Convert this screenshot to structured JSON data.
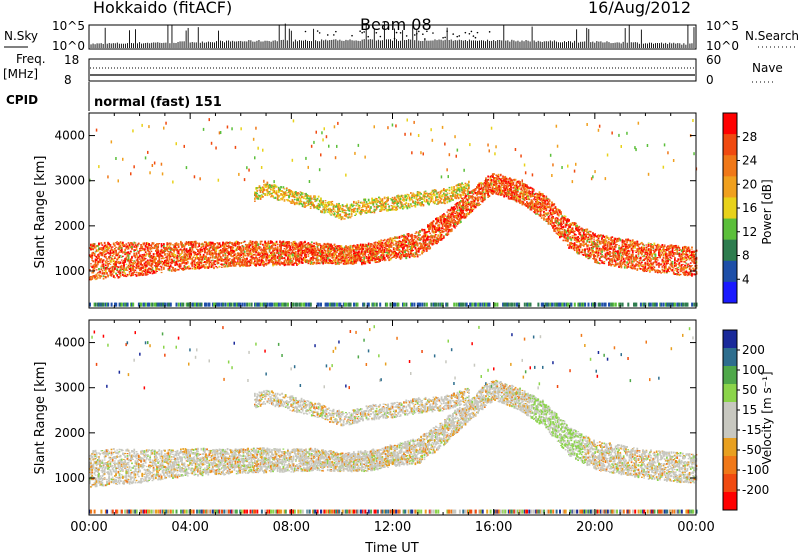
{
  "header": {
    "station": "Hokkaido (fitACF)",
    "beam": "Beam 08",
    "date": "16/Aug/2012"
  },
  "summary": {
    "nsky_label": "N.Sky",
    "nsky_ticks": [
      "10^5",
      "10^0"
    ],
    "nsearch_label": "N.Search",
    "nsearch_ticks": [
      "10^5",
      "10^0"
    ],
    "freq_label_1": "Freq.",
    "freq_label_2": "[MHz]",
    "freq_ticks": [
      "18",
      "8"
    ],
    "nave_label": "Nave",
    "nave_ticks": [
      "60",
      "0"
    ],
    "cpid_label": "CPID",
    "cpid_value": "normal (fast) 151"
  },
  "colors": {
    "power_scale": [
      "#1a1aff",
      "#1e4fa8",
      "#2e7d4f",
      "#5bbf3a",
      "#e8d21a",
      "#f0a01e",
      "#f07818",
      "#f04a10",
      "#ff0000"
    ],
    "velocity_scale": [
      "#ff0000",
      "#f04a10",
      "#f07818",
      "#e8a020",
      "#c8c8c0",
      "#c8c8c0",
      "#8bd44a",
      "#4fa84a",
      "#2e6e8e",
      "#1a2a9a"
    ],
    "ground_scatter": "#c8c8c0"
  },
  "chart_data": [
    {
      "type": "heatmap",
      "panel": "power",
      "xlabel": "",
      "ylabel": "Slant Range [km]",
      "xlim": [
        0,
        24
      ],
      "ylim": [
        180,
        4500
      ],
      "y_ticks": [
        "1000",
        "2000",
        "3000",
        "4000"
      ],
      "colorbar": {
        "label": "Power [dB]",
        "range": [
          0,
          32
        ],
        "ticks": [
          "4",
          "8",
          "12",
          "16",
          "20",
          "24",
          "28"
        ]
      },
      "echo_bands": [
        {
          "t": [
            0,
            1,
            2,
            3,
            4,
            5,
            6,
            7,
            8,
            9,
            10,
            11,
            12,
            13,
            14,
            15,
            15.7,
            16,
            17,
            18,
            19,
            20,
            21,
            22,
            23,
            24
          ],
          "center_km": [
            1200,
            1250,
            1260,
            1300,
            1350,
            1350,
            1380,
            1390,
            1390,
            1400,
            1350,
            1380,
            1500,
            1600,
            2000,
            2500,
            2850,
            2950,
            2750,
            2400,
            1800,
            1500,
            1400,
            1300,
            1250,
            1200
          ],
          "width_km": [
            500,
            500,
            450,
            400,
            380,
            350,
            350,
            330,
            320,
            300,
            250,
            280,
            300,
            350,
            350,
            300,
            300,
            280,
            300,
            350,
            400,
            400,
            400,
            400,
            400,
            400
          ],
          "level": "high"
        },
        {
          "t": [
            6.5,
            7,
            8,
            9,
            10,
            11,
            12,
            13,
            14,
            15
          ],
          "center_km": [
            2700,
            2800,
            2650,
            2500,
            2300,
            2450,
            2500,
            2600,
            2650,
            2850
          ],
          "width_km": [
            200,
            200,
            200,
            200,
            200,
            200,
            200,
            200,
            200,
            200
          ],
          "level": "mid"
        }
      ]
    },
    {
      "type": "heatmap",
      "panel": "velocity",
      "xlabel": "Time UT",
      "ylabel": "Slant Range [km]",
      "xlim": [
        0,
        24
      ],
      "ylim": [
        180,
        4500
      ],
      "x_ticks": [
        "00:00",
        "04:00",
        "08:00",
        "12:00",
        "16:00",
        "20:00",
        "00:00"
      ],
      "y_ticks": [
        "1000",
        "2000",
        "3000",
        "4000"
      ],
      "colorbar": {
        "label": "Velocity [m s⁻¹]",
        "range": [
          -250,
          250
        ],
        "ticks": [
          "200",
          "100",
          "50",
          "15",
          "-15",
          "-50",
          "-100",
          "-200"
        ]
      }
    }
  ]
}
